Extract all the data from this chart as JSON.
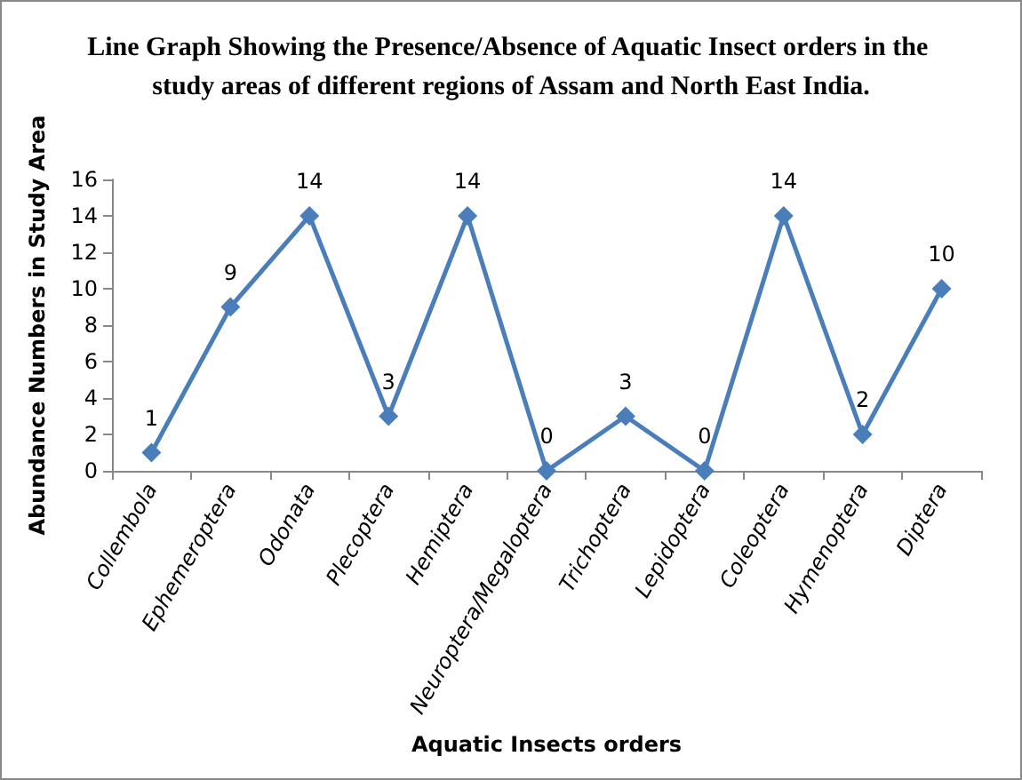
{
  "chart_data": {
    "type": "line",
    "title": "Line Graph Showing the Presence/Absence of Aquatic Insect orders in the study areas of different regions of Assam and North East India.",
    "xlabel": "Aquatic Insects orders",
    "ylabel": "Abundance Numbers in Study Area",
    "categories": [
      "Collembola",
      "Ephemeroptera",
      "Odonata",
      "Plecoptera",
      "Hemiptera",
      "Neuroptera/Megaloptera",
      "Trichoptera",
      "Lepidoptera",
      "Coleoptera",
      "Hymenoptera",
      "Diptera"
    ],
    "series": [
      {
        "color": "#4a7ebb",
        "values": [
          1,
          9,
          14,
          3,
          14,
          0,
          3,
          0,
          14,
          2,
          10
        ]
      }
    ],
    "ylim": [
      0,
      16
    ],
    "yticks": [
      0,
      2,
      4,
      6,
      8,
      10,
      12,
      14,
      16
    ],
    "marker": "diamond",
    "line_style": "solid",
    "data_labels": true,
    "grid": false
  }
}
